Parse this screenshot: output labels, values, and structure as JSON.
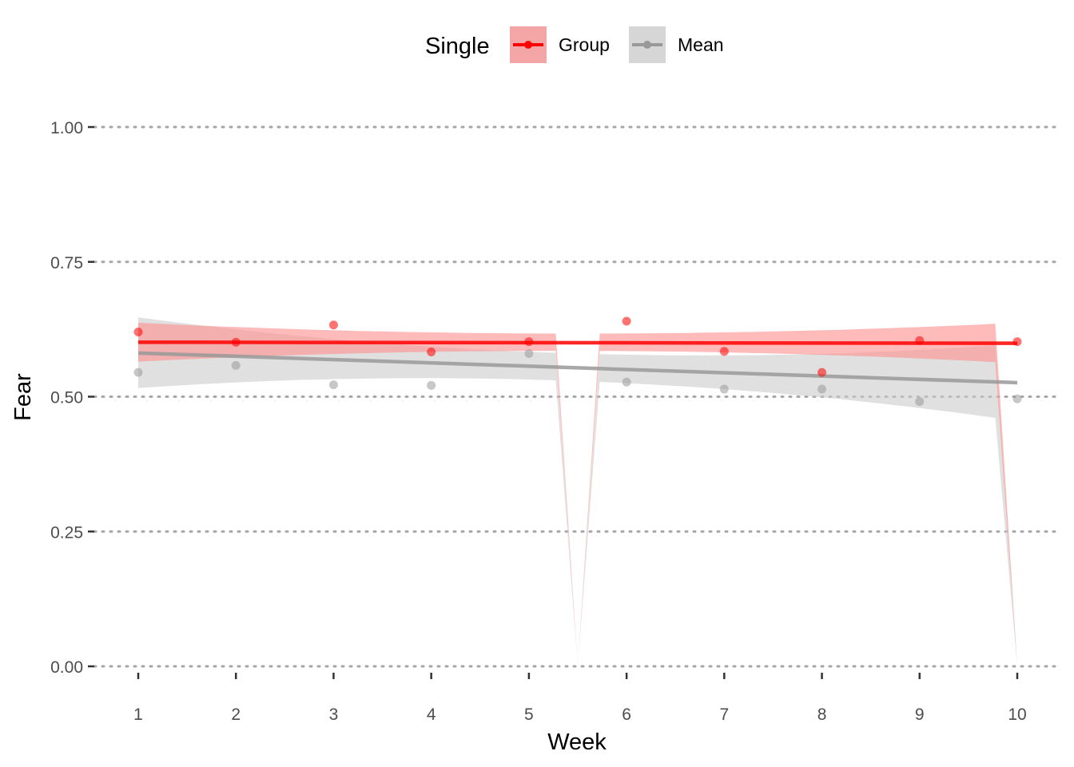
{
  "chart_data": {
    "type": "line",
    "xlabel": "Week",
    "ylabel": "Fear",
    "xlim": [
      1,
      10
    ],
    "ylim": [
      0,
      1
    ],
    "x_ticks": [
      "1",
      "2",
      "3",
      "4",
      "5",
      "6",
      "7",
      "8",
      "9",
      "10"
    ],
    "y_ticks": [
      "0.00",
      "0.25",
      "0.50",
      "0.75",
      "1.00"
    ],
    "grid": "horizontal-dotted",
    "legend": {
      "title": "Single",
      "position": "top",
      "entries": [
        "Group",
        "Mean"
      ]
    },
    "series": [
      {
        "name": "Group",
        "color": "#ff0000",
        "ribbon_color": "#ff8c8c",
        "x": [
          1,
          2,
          3,
          4,
          5,
          6,
          7,
          8,
          9,
          10
        ],
        "points": [
          0.62,
          0.601,
          0.633,
          0.583,
          0.602,
          0.64,
          0.584,
          0.545,
          0.604,
          0.602
        ],
        "trend": {
          "start": 0.601,
          "end": 0.599
        },
        "ci_lower": {
          "start": 0.565,
          "mid": 0.585,
          "end": 0.562
        },
        "ci_upper": {
          "start": 0.637,
          "mid": 0.617,
          "end": 0.637
        }
      },
      {
        "name": "Mean",
        "color": "#999999",
        "ribbon_color": "#cccccc",
        "x": [
          1,
          2,
          3,
          4,
          5,
          6,
          7,
          8,
          9,
          10
        ],
        "points": [
          0.545,
          0.558,
          0.522,
          0.521,
          0.58,
          0.527,
          0.514,
          0.514,
          0.491,
          0.496
        ],
        "trend": {
          "start": 0.581,
          "end": 0.526
        },
        "ci_lower": {
          "start": 0.516,
          "mid": 0.529,
          "end": 0.455
        },
        "ci_upper": {
          "start": 0.647,
          "mid": 0.58,
          "end": 0.598
        }
      }
    ]
  }
}
